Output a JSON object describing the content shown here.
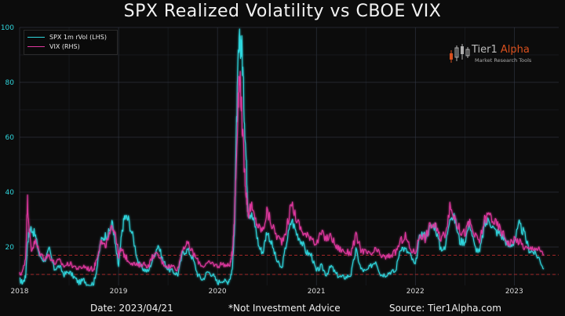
{
  "chart_data": {
    "type": "line",
    "title": "SPX Realized Volatility vs CBOE VIX",
    "xlabel": "",
    "ylabel": "",
    "x_ticks": [
      2018,
      2019,
      2020,
      2021,
      2022,
      2023
    ],
    "y_ticks": [
      20,
      40,
      60,
      80,
      100
    ],
    "xlim": [
      2018.0,
      2023.45
    ],
    "ylim": [
      6,
      100
    ],
    "grid": true,
    "legend_position": "top-left",
    "reference_lines": [
      17,
      10
    ],
    "series": [
      {
        "name": "SPX 1m rVol (LHS)",
        "color": "#2fd6dd",
        "x": [
          2018.0,
          2018.03,
          2018.06,
          2018.08,
          2018.1,
          2018.12,
          2018.16,
          2018.2,
          2018.25,
          2018.3,
          2018.35,
          2018.4,
          2018.45,
          2018.5,
          2018.55,
          2018.6,
          2018.65,
          2018.7,
          2018.75,
          2018.78,
          2018.82,
          2018.86,
          2018.9,
          2018.94,
          2018.97,
          2019.0,
          2019.03,
          2019.06,
          2019.1,
          2019.15,
          2019.2,
          2019.25,
          2019.3,
          2019.35,
          2019.4,
          2019.45,
          2019.5,
          2019.55,
          2019.6,
          2019.65,
          2019.7,
          2019.75,
          2019.8,
          2019.85,
          2019.9,
          2019.95,
          2020.0,
          2020.05,
          2020.1,
          2020.13,
          2020.15,
          2020.17,
          2020.19,
          2020.21,
          2020.23,
          2020.25,
          2020.27,
          2020.29,
          2020.31,
          2020.34,
          2020.38,
          2020.42,
          2020.46,
          2020.5,
          2020.55,
          2020.6,
          2020.65,
          2020.7,
          2020.75,
          2020.8,
          2020.85,
          2020.9,
          2020.95,
          2021.0,
          2021.05,
          2021.1,
          2021.15,
          2021.2,
          2021.25,
          2021.3,
          2021.35,
          2021.4,
          2021.45,
          2021.5,
          2021.55,
          2021.6,
          2021.65,
          2021.7,
          2021.75,
          2021.8,
          2021.85,
          2021.9,
          2021.95,
          2022.0,
          2022.05,
          2022.1,
          2022.15,
          2022.2,
          2022.25,
          2022.3,
          2022.35,
          2022.4,
          2022.45,
          2022.5,
          2022.55,
          2022.6,
          2022.65,
          2022.7,
          2022.75,
          2022.8,
          2022.85,
          2022.9,
          2022.95,
          2023.0,
          2023.05,
          2023.1,
          2023.15,
          2023.2,
          2023.25,
          2023.3
        ],
        "values": [
          8,
          7,
          9,
          22,
          26,
          27,
          24,
          17,
          15,
          19,
          12,
          13,
          10,
          11,
          9,
          7,
          8,
          6,
          7,
          12,
          22,
          24,
          25,
          29,
          20,
          13,
          24,
          31,
          30,
          23,
          14,
          12,
          11,
          16,
          21,
          15,
          12,
          11,
          10,
          18,
          19,
          16,
          10,
          8,
          11,
          10,
          7,
          8,
          7,
          9,
          12,
          24,
          60,
          88,
          96,
          91,
          70,
          52,
          33,
          32,
          28,
          20,
          18,
          26,
          21,
          15,
          12,
          22,
          30,
          25,
          22,
          18,
          17,
          11,
          13,
          10,
          13,
          10,
          9,
          9,
          10,
          19,
          12,
          11,
          13,
          15,
          10,
          10,
          11,
          11,
          20,
          19,
          17,
          13,
          25,
          24,
          27,
          28,
          20,
          19,
          32,
          30,
          22,
          22,
          29,
          20,
          18,
          28,
          30,
          26,
          25,
          23,
          20,
          22,
          28,
          25,
          19,
          18,
          16,
          12
        ]
      },
      {
        "name": "VIX (RHS)",
        "color": "#e0379f",
        "x": [
          2018.0,
          2018.03,
          2018.06,
          2018.08,
          2018.1,
          2018.12,
          2018.16,
          2018.2,
          2018.25,
          2018.3,
          2018.35,
          2018.4,
          2018.45,
          2018.5,
          2018.55,
          2018.6,
          2018.65,
          2018.7,
          2018.75,
          2018.78,
          2018.82,
          2018.86,
          2018.9,
          2018.94,
          2018.97,
          2019.0,
          2019.03,
          2019.06,
          2019.1,
          2019.15,
          2019.2,
          2019.25,
          2019.3,
          2019.35,
          2019.4,
          2019.45,
          2019.5,
          2019.55,
          2019.6,
          2019.65,
          2019.7,
          2019.75,
          2019.8,
          2019.85,
          2019.9,
          2019.95,
          2020.0,
          2020.05,
          2020.1,
          2020.13,
          2020.15,
          2020.17,
          2020.19,
          2020.21,
          2020.23,
          2020.25,
          2020.27,
          2020.29,
          2020.31,
          2020.34,
          2020.38,
          2020.42,
          2020.46,
          2020.5,
          2020.55,
          2020.6,
          2020.65,
          2020.7,
          2020.75,
          2020.8,
          2020.85,
          2020.9,
          2020.95,
          2021.0,
          2021.05,
          2021.1,
          2021.15,
          2021.2,
          2021.25,
          2021.3,
          2021.35,
          2021.4,
          2021.45,
          2021.5,
          2021.55,
          2021.6,
          2021.65,
          2021.7,
          2021.75,
          2021.8,
          2021.85,
          2021.9,
          2021.95,
          2022.0,
          2022.05,
          2022.1,
          2022.15,
          2022.2,
          2022.25,
          2022.3,
          2022.35,
          2022.4,
          2022.45,
          2022.5,
          2022.55,
          2022.6,
          2022.65,
          2022.7,
          2022.75,
          2022.8,
          2022.85,
          2022.9,
          2022.95,
          2023.0,
          2023.05,
          2023.1,
          2023.15,
          2023.2,
          2023.25,
          2023.3
        ],
        "values": [
          10,
          11,
          16,
          37,
          25,
          19,
          22,
          18,
          16,
          17,
          14,
          15,
          13,
          14,
          13,
          12,
          13,
          12,
          12,
          16,
          22,
          20,
          23,
          28,
          25,
          17,
          19,
          17,
          15,
          14,
          13,
          14,
          13,
          17,
          17,
          14,
          13,
          13,
          12,
          20,
          21,
          18,
          15,
          13,
          14,
          14,
          13,
          14,
          13,
          14,
          18,
          30,
          50,
          75,
          82,
          65,
          50,
          40,
          32,
          35,
          30,
          27,
          26,
          33,
          28,
          24,
          22,
          27,
          36,
          30,
          26,
          24,
          24,
          21,
          25,
          23,
          24,
          20,
          19,
          18,
          18,
          24,
          19,
          18,
          17,
          19,
          17,
          16,
          17,
          18,
          22,
          24,
          19,
          18,
          25,
          23,
          28,
          28,
          23,
          25,
          34,
          31,
          26,
          25,
          29,
          24,
          22,
          30,
          32,
          29,
          27,
          24,
          21,
          23,
          22,
          20,
          19,
          20,
          19,
          17
        ]
      }
    ]
  },
  "legend": {
    "rvol_label": "SPX 1m rVol (LHS)",
    "vix_label": "VIX (RHS)"
  },
  "logo": {
    "name_part1": "Tier1 ",
    "name_part2": "Alpha",
    "tagline": "Market Research Tools"
  },
  "footer": {
    "date": "Date: 2023/04/21",
    "disclaimer": "*Not Investment Advice",
    "source": "Source: Tier1Alpha.com"
  },
  "colors": {
    "rvol": "#2fd6dd",
    "vix": "#e0379f",
    "reference_line": "#d43030",
    "accent": "#d9501e"
  }
}
